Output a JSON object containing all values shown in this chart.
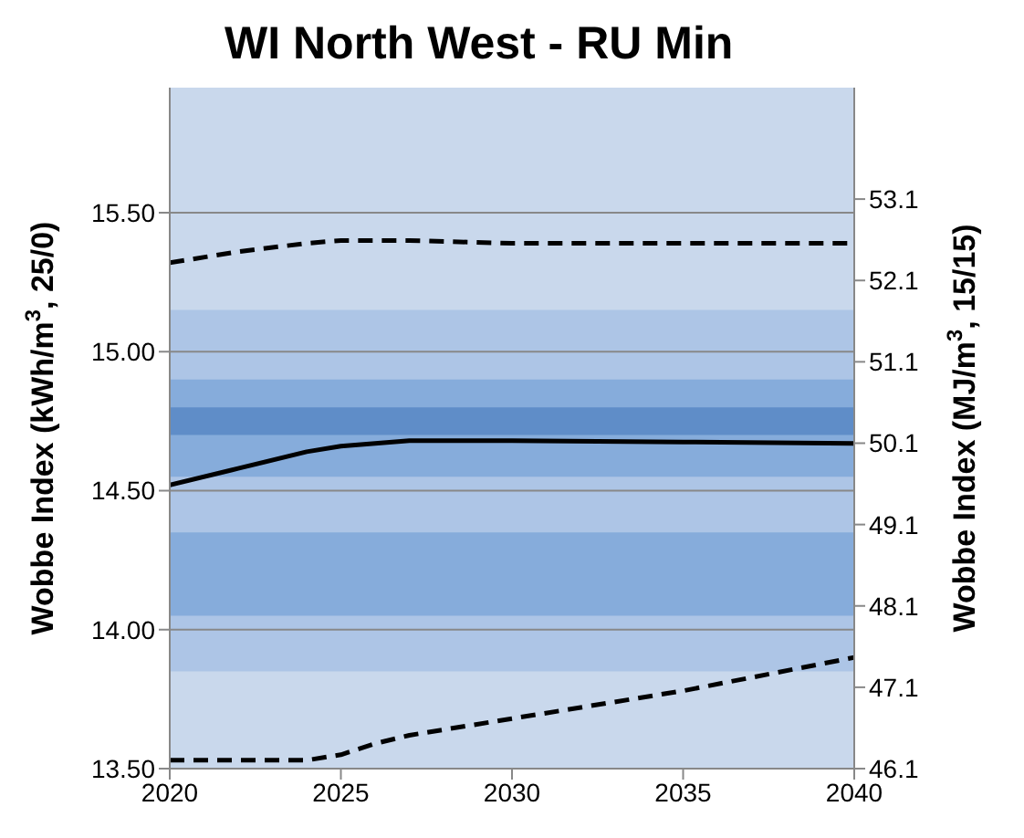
{
  "chart_data": {
    "type": "line",
    "title": "WI North West - RU Min",
    "ylabel": "Wobbe Index (kWh/m$^{3}$, 25/0)",
    "y2label": "Wobbe Index (MJ/m$^{3}$, 15/15)",
    "xlim": [
      2020,
      2040
    ],
    "xticks": [
      2020,
      2025,
      2030,
      2035,
      2040
    ],
    "ylim": [
      13.5,
      15.95
    ],
    "yticks": [
      {
        "value": 13.5,
        "label": "13.50"
      },
      {
        "value": 14,
        "label": "14.00"
      },
      {
        "value": 14.5,
        "label": "14.50"
      },
      {
        "value": 15,
        "label": "15.00"
      },
      {
        "value": 15.5,
        "label": "15.50"
      }
    ],
    "y2lim": [
      46.1,
      54.47
    ],
    "y2ticks": [
      46.1,
      47.1,
      48.1,
      49.1,
      50.1,
      51.1,
      52.1,
      53.1
    ],
    "grid": "y",
    "legend": false,
    "bands": [
      {
        "axis": "y",
        "from": 13.5,
        "to": 15.95,
        "color": "#c9d8ec"
      },
      {
        "axis": "y",
        "from": 13.85,
        "to": 15.15,
        "color": "#adc5e6"
      },
      {
        "axis": "y",
        "from": 14.05,
        "to": 14.35,
        "color": "#86acdb"
      },
      {
        "axis": "y",
        "from": 14.55,
        "to": 14.9,
        "color": "#86acdb"
      },
      {
        "axis": "y",
        "from": 14.7,
        "to": 14.8,
        "color": "#5f8dc8"
      }
    ],
    "series": [
      {
        "color": "#000000",
        "line_style": "dashed",
        "x": [
          2020,
          2022,
          2024,
          2025,
          2027,
          2030,
          2035,
          2040
        ],
        "values": [
          15.32,
          15.36,
          15.39,
          15.4,
          15.4,
          15.39,
          15.39,
          15.39
        ]
      },
      {
        "color": "#000000",
        "line_style": "solid",
        "x": [
          2020,
          2022,
          2024,
          2025,
          2027,
          2030,
          2035,
          2040
        ],
        "values": [
          14.52,
          14.58,
          14.64,
          14.66,
          14.68,
          14.68,
          14.675,
          14.67
        ]
      },
      {
        "color": "#000000",
        "line_style": "dashed",
        "x": [
          2020,
          2022,
          2024,
          2025,
          2026,
          2027,
          2030,
          2035,
          2040
        ],
        "values": [
          13.53,
          13.53,
          13.53,
          13.55,
          13.59,
          13.62,
          13.68,
          13.78,
          13.9
        ]
      }
    ]
  }
}
